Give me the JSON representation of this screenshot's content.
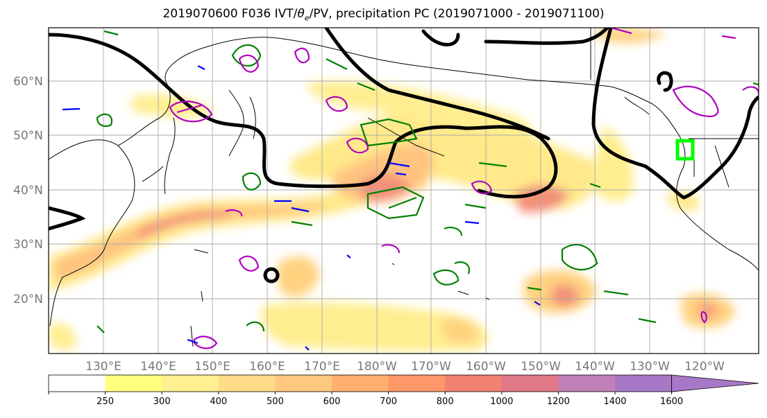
{
  "title": "2019070600 F036 IVT/θe/PV, precipitation PC (2019071000 - 2019071100)",
  "title_parts": {
    "prefix": "2019070600 F036 IVT/",
    "theta": "θ",
    "theta_sub": "e",
    "suffix": "/PV, precipitation PC (2019071000 - 2019071100)"
  },
  "map": {
    "lat_labels": [
      "60°N",
      "50°N",
      "40°N",
      "30°N",
      "20°N"
    ],
    "lon_labels": [
      "130°E",
      "140°E",
      "150°E",
      "160°E",
      "170°E",
      "180°W",
      "170°W",
      "160°W",
      "150°W",
      "140°W",
      "130°W",
      "120°W"
    ],
    "lon_range": [
      120,
      250
    ],
    "lat_range": [
      10,
      70
    ]
  },
  "colorbar": {
    "ticks": [
      "250",
      "300",
      "400",
      "500",
      "600",
      "700",
      "800",
      "1000",
      "1200",
      "1400",
      "1600"
    ],
    "colors": [
      "#ffffff",
      "#ffff80",
      "#fff090",
      "#ffdc88",
      "#ffc880",
      "#ffb070",
      "#ff9868",
      "#f08070",
      "#e07888",
      "#c080b8",
      "#a878c8"
    ]
  },
  "colors": {
    "ivt_contour": "#000000",
    "theta_contour": "#008000",
    "pv_contour": "#b000c0",
    "negative_contour": "#0000ff",
    "target_box": "#00ff00"
  }
}
